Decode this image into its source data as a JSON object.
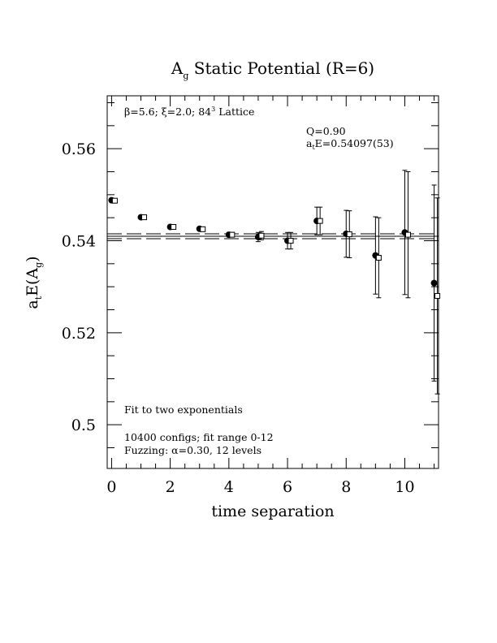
{
  "chart_data": {
    "type": "scatter",
    "title": {
      "main": "A",
      "sub": "g",
      "rest": " Static Potential (R=6)"
    },
    "xlabel": "time separation",
    "ylabel": {
      "a": "a",
      "t": "t",
      "mid": "E(A",
      "g": "g",
      "end": ")"
    },
    "xlim": [
      -0.15,
      11.15
    ],
    "ylim": [
      0.4905,
      0.5715
    ],
    "xticks": [
      0,
      2,
      4,
      6,
      8,
      10
    ],
    "xtick_labels": [
      "0",
      "2",
      "4",
      "6",
      "8",
      "10"
    ],
    "yticks": [
      0.5,
      0.52,
      0.54,
      0.56
    ],
    "ytick_labels": [
      "0.5",
      "0.52",
      "0.54",
      "0.56"
    ],
    "annotations": {
      "lattice": "β=5.6; ξ=2.0; 8⁴3 Lattice",
      "lattice_parts": {
        "beta": "β",
        "beta_rest": "=5.6; ",
        "xi": "ξ",
        "xi_rest": "=2.0; 84",
        "sup": "3",
        "tail": " Lattice"
      },
      "q": "Q=0.90",
      "energy": {
        "a": "a",
        "t": "t",
        "rest": "E=0.54097(53)"
      },
      "fit": "Fit to two exponentials",
      "configs": "10400 configs; fit range 0-12",
      "fuzz": {
        "pre": "Fuzzing: ",
        "alpha": "α",
        "post": "=0.30, 12 levels"
      }
    },
    "fit_band": {
      "center": 0.54097,
      "lower": 0.54044,
      "upper": 0.5415
    },
    "series": [
      {
        "marker": "filled-circle",
        "points": [
          {
            "x": 0,
            "y": 0.5488,
            "err": 0.0003
          },
          {
            "x": 1,
            "y": 0.5451,
            "err": 0.0003
          },
          {
            "x": 2,
            "y": 0.543,
            "err": 0.0003
          },
          {
            "x": 3,
            "y": 0.5426,
            "err": 0.0003
          },
          {
            "x": 4,
            "y": 0.5413,
            "err": 0.0005
          },
          {
            "x": 5,
            "y": 0.5408,
            "err": 0.001
          },
          {
            "x": 6,
            "y": 0.54,
            "err": 0.0018
          },
          {
            "x": 7,
            "y": 0.5443,
            "err": 0.003
          },
          {
            "x": 8,
            "y": 0.5415,
            "err": 0.0051
          },
          {
            "x": 9,
            "y": 0.5368,
            "err": 0.0084
          },
          {
            "x": 10,
            "y": 0.5418,
            "err": 0.0135
          },
          {
            "x": 11,
            "y": 0.5308,
            "err": 0.0213
          }
        ]
      },
      {
        "marker": "open-square",
        "points": [
          {
            "x": 0,
            "y": 0.5487,
            "err": 0.0003
          },
          {
            "x": 1,
            "y": 0.5451,
            "err": 0.0003
          },
          {
            "x": 2,
            "y": 0.543,
            "err": 0.0003
          },
          {
            "x": 3,
            "y": 0.5425,
            "err": 0.0003
          },
          {
            "x": 4,
            "y": 0.5413,
            "err": 0.0005
          },
          {
            "x": 5,
            "y": 0.5411,
            "err": 0.0009
          },
          {
            "x": 6,
            "y": 0.54,
            "err": 0.0018
          },
          {
            "x": 7,
            "y": 0.5443,
            "err": 0.003
          },
          {
            "x": 8,
            "y": 0.5414,
            "err": 0.0051
          },
          {
            "x": 9,
            "y": 0.5363,
            "err": 0.0087
          },
          {
            "x": 10,
            "y": 0.5413,
            "err": 0.0137
          },
          {
            "x": 11,
            "y": 0.528,
            "err": 0.0213
          }
        ]
      }
    ]
  }
}
